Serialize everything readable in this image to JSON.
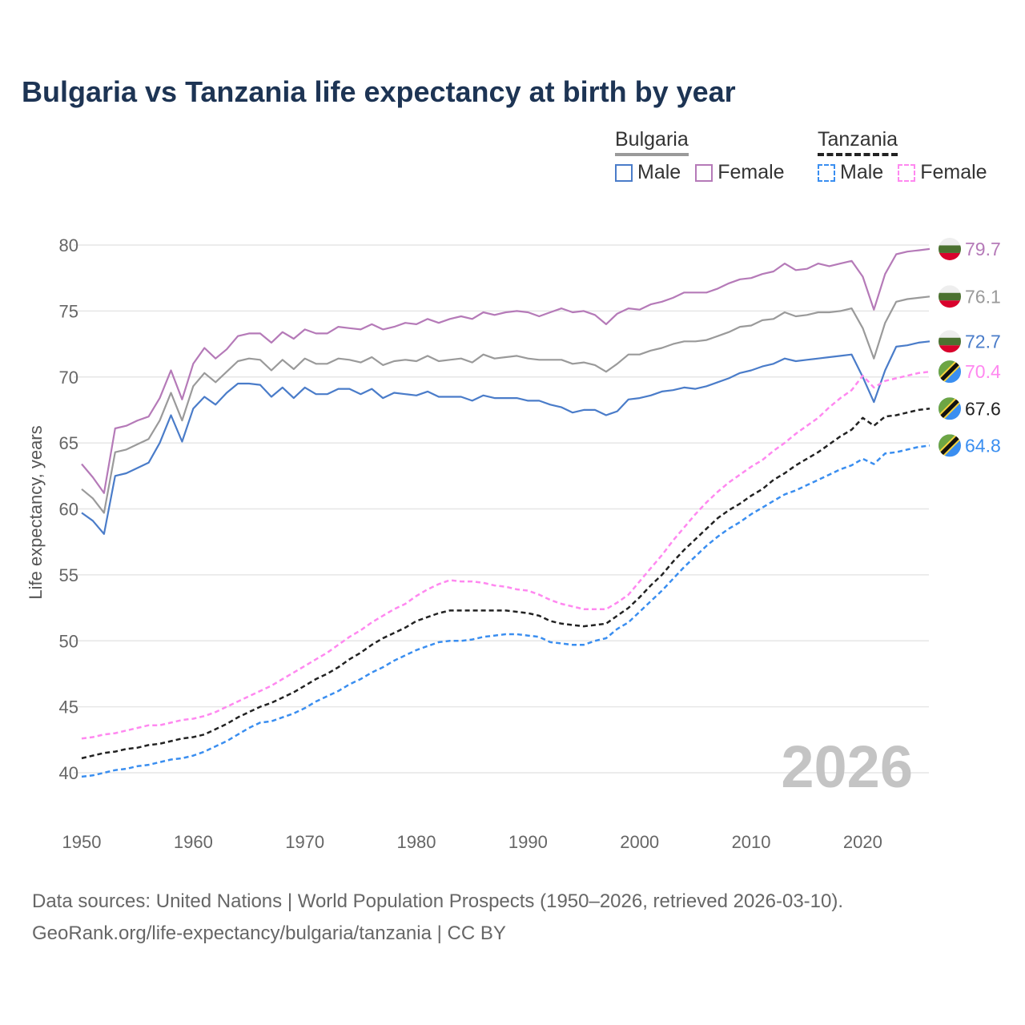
{
  "chart_data": {
    "type": "line",
    "title": "Bulgaria vs Tanzania life expectancy at birth by year",
    "xlabel": "",
    "ylabel": "Life expectancy, years",
    "xlim": [
      1950,
      2026
    ],
    "ylim": [
      38,
      81
    ],
    "x_ticks": [
      1950,
      1960,
      1970,
      1980,
      1990,
      2000,
      2010,
      2020
    ],
    "y_ticks": [
      40,
      45,
      50,
      55,
      60,
      65,
      70,
      75,
      80
    ],
    "grid": true,
    "watermark_year": "2026",
    "legend": {
      "placement": "top-right",
      "groups": [
        {
          "name": "Bulgaria",
          "items": [
            "Male",
            "Female"
          ]
        },
        {
          "name": "Tanzania",
          "items": [
            "Male",
            "Female"
          ]
        }
      ]
    },
    "x_start": 1950,
    "series": [
      {
        "name": "Bulgaria Female",
        "country": "Bulgaria",
        "flag": "bulgaria-flag-icon",
        "color": "#b57ab8",
        "dashed": false,
        "end_label": "79.7",
        "values": [
          63.4,
          62.4,
          61.2,
          66.1,
          66.3,
          66.7,
          67.0,
          68.4,
          70.5,
          68.3,
          71.0,
          72.2,
          71.4,
          72.1,
          73.1,
          73.3,
          73.3,
          72.6,
          73.4,
          72.9,
          73.6,
          73.3,
          73.3,
          73.8,
          73.7,
          73.6,
          74.0,
          73.6,
          73.8,
          74.1,
          74.0,
          74.4,
          74.1,
          74.4,
          74.6,
          74.4,
          74.9,
          74.7,
          74.9,
          75.0,
          74.9,
          74.6,
          74.9,
          75.2,
          74.9,
          75.0,
          74.7,
          74.0,
          74.8,
          75.2,
          75.1,
          75.5,
          75.7,
          76.0,
          76.4,
          76.4,
          76.4,
          76.7,
          77.1,
          77.4,
          77.5,
          77.8,
          78.0,
          78.6,
          78.1,
          78.2,
          78.6,
          78.4,
          78.6,
          78.8,
          77.6,
          75.1,
          77.8,
          79.3,
          79.5,
          79.6,
          79.7
        ]
      },
      {
        "name": "Bulgaria Total",
        "country": "Bulgaria",
        "flag": "bulgaria-flag-icon",
        "color": "#9a9a9a",
        "dashed": false,
        "end_label": "76.1",
        "values": [
          61.5,
          60.8,
          59.7,
          64.3,
          64.5,
          64.9,
          65.3,
          66.7,
          68.8,
          66.7,
          69.3,
          70.3,
          69.6,
          70.4,
          71.2,
          71.4,
          71.3,
          70.5,
          71.3,
          70.6,
          71.4,
          71.0,
          71.0,
          71.4,
          71.3,
          71.1,
          71.5,
          70.9,
          71.2,
          71.3,
          71.2,
          71.6,
          71.2,
          71.3,
          71.4,
          71.1,
          71.7,
          71.4,
          71.5,
          71.6,
          71.4,
          71.3,
          71.3,
          71.3,
          71.0,
          71.1,
          70.9,
          70.4,
          71.0,
          71.7,
          71.7,
          72.0,
          72.2,
          72.5,
          72.7,
          72.7,
          72.8,
          73.1,
          73.4,
          73.8,
          73.9,
          74.3,
          74.4,
          74.9,
          74.6,
          74.7,
          74.9,
          74.9,
          75.0,
          75.2,
          73.7,
          71.4,
          74.1,
          75.7,
          75.9,
          76.0,
          76.1
        ]
      },
      {
        "name": "Bulgaria Male",
        "country": "Bulgaria",
        "flag": "bulgaria-flag-icon",
        "color": "#4a7cc9",
        "dashed": false,
        "end_label": "72.7",
        "values": [
          59.7,
          59.1,
          58.1,
          62.5,
          62.7,
          63.1,
          63.5,
          65.0,
          67.1,
          65.1,
          67.6,
          68.5,
          67.9,
          68.8,
          69.5,
          69.5,
          69.4,
          68.5,
          69.2,
          68.4,
          69.2,
          68.7,
          68.7,
          69.1,
          69.1,
          68.7,
          69.1,
          68.4,
          68.8,
          68.7,
          68.6,
          68.9,
          68.5,
          68.5,
          68.5,
          68.2,
          68.6,
          68.4,
          68.4,
          68.4,
          68.2,
          68.2,
          67.9,
          67.7,
          67.3,
          67.5,
          67.5,
          67.1,
          67.4,
          68.3,
          68.4,
          68.6,
          68.9,
          69.0,
          69.2,
          69.1,
          69.3,
          69.6,
          69.9,
          70.3,
          70.5,
          70.8,
          71.0,
          71.4,
          71.2,
          71.3,
          71.4,
          71.5,
          71.6,
          71.7,
          70.0,
          68.1,
          70.5,
          72.3,
          72.4,
          72.6,
          72.7
        ]
      },
      {
        "name": "Tanzania Female",
        "country": "Tanzania",
        "flag": "tanzania-flag-icon",
        "color": "#ff88f0",
        "dashed": true,
        "end_label": "70.4",
        "values": [
          42.6,
          42.7,
          42.9,
          43.0,
          43.2,
          43.4,
          43.6,
          43.6,
          43.8,
          44.0,
          44.1,
          44.3,
          44.6,
          45.0,
          45.4,
          45.8,
          46.2,
          46.6,
          47.1,
          47.6,
          48.1,
          48.6,
          49.1,
          49.7,
          50.3,
          50.8,
          51.4,
          51.9,
          52.4,
          52.8,
          53.4,
          53.9,
          54.3,
          54.6,
          54.5,
          54.5,
          54.4,
          54.2,
          54.1,
          53.9,
          53.8,
          53.5,
          53.1,
          52.8,
          52.6,
          52.4,
          52.4,
          52.4,
          52.9,
          53.5,
          54.5,
          55.5,
          56.5,
          57.6,
          58.6,
          59.6,
          60.5,
          61.3,
          62.0,
          62.6,
          63.2,
          63.7,
          64.4,
          65.0,
          65.7,
          66.3,
          66.9,
          67.7,
          68.4,
          69.0,
          70.1,
          69.2,
          69.7,
          69.9,
          70.1,
          70.3,
          70.4
        ]
      },
      {
        "name": "Tanzania Total",
        "country": "Tanzania",
        "flag": "tanzania-flag-icon",
        "color": "#222222",
        "dashed": true,
        "end_label": "67.6",
        "values": [
          41.1,
          41.3,
          41.5,
          41.6,
          41.8,
          41.9,
          42.1,
          42.2,
          42.4,
          42.6,
          42.7,
          42.9,
          43.3,
          43.7,
          44.2,
          44.6,
          45.0,
          45.3,
          45.7,
          46.1,
          46.6,
          47.1,
          47.5,
          48.0,
          48.6,
          49.1,
          49.7,
          50.2,
          50.6,
          51.0,
          51.5,
          51.8,
          52.1,
          52.3,
          52.3,
          52.3,
          52.3,
          52.3,
          52.3,
          52.2,
          52.1,
          51.9,
          51.5,
          51.3,
          51.2,
          51.1,
          51.2,
          51.3,
          51.9,
          52.5,
          53.3,
          54.2,
          55.0,
          56.0,
          56.9,
          57.7,
          58.5,
          59.3,
          59.9,
          60.4,
          61.0,
          61.5,
          62.2,
          62.7,
          63.3,
          63.8,
          64.3,
          64.9,
          65.5,
          66.0,
          66.9,
          66.3,
          67.0,
          67.1,
          67.3,
          67.5,
          67.6
        ]
      },
      {
        "name": "Tanzania Male",
        "country": "Tanzania",
        "flag": "tanzania-flag-icon",
        "color": "#3a8ef0",
        "dashed": true,
        "end_label": "64.8",
        "values": [
          39.7,
          39.8,
          40.0,
          40.2,
          40.3,
          40.5,
          40.6,
          40.8,
          41.0,
          41.1,
          41.3,
          41.6,
          42.0,
          42.4,
          42.9,
          43.4,
          43.8,
          43.9,
          44.2,
          44.5,
          44.9,
          45.4,
          45.8,
          46.2,
          46.7,
          47.1,
          47.6,
          48.0,
          48.5,
          48.9,
          49.3,
          49.6,
          49.9,
          50.0,
          50.0,
          50.1,
          50.3,
          50.4,
          50.5,
          50.5,
          50.4,
          50.3,
          49.9,
          49.8,
          49.7,
          49.7,
          50.0,
          50.2,
          50.9,
          51.4,
          52.2,
          53.0,
          53.8,
          54.7,
          55.6,
          56.4,
          57.2,
          57.9,
          58.5,
          59.0,
          59.6,
          60.1,
          60.6,
          61.1,
          61.4,
          61.8,
          62.2,
          62.6,
          63.0,
          63.3,
          63.8,
          63.4,
          64.2,
          64.3,
          64.5,
          64.7,
          64.8
        ]
      }
    ]
  },
  "colors": {
    "title": "#1d3454",
    "bg_male": "#4a7cc9",
    "bg_female": "#b57ab8",
    "tz_male": "#3a8ef0",
    "tz_female": "#ff88f0"
  },
  "source": {
    "line1": "Data sources: United Nations | World Population Prospects (1950–2026, retrieved 2026-03-10).",
    "line2": "GeoRank.org/life-expectancy/bulgaria/tanzania | CC BY"
  }
}
